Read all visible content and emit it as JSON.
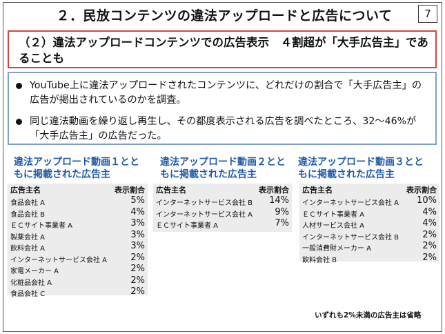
{
  "header": {
    "title": "２．民放コンテンツの違法アップロードと広告について",
    "page_number": "7"
  },
  "subtitle": "（２）違法アップロードコンテンツでの広告表示　４割超が「大手広告主」であることも",
  "bullets": [
    "YouTube上に違法アップロードされたコンテンツに、どれだけの割合で「大手広告主」の広告が掲出されているのかを調査。",
    "同じ違法動画を繰り返し再生し、その都度表示される広告を調べたところ、32～46%が「大手広告主」の広告だった。"
  ],
  "tables": [
    {
      "heading": "違法アップロード動画１とともに掲載された広告主",
      "col_name": "広告主名",
      "col_value": "表示割合",
      "rows": [
        {
          "name": "食品会社 A",
          "pct": "5%"
        },
        {
          "name": "食品会社 B",
          "pct": "4%"
        },
        {
          "name": "ＥＣサイト事業者 A",
          "pct": "3%"
        },
        {
          "name": "製薬会社 A",
          "pct": "3%"
        },
        {
          "name": "飲料会社 A",
          "pct": "3%"
        },
        {
          "name": "インターネットサービス会社 A",
          "pct": "2%"
        },
        {
          "name": "家電メーカー A",
          "pct": "2%"
        },
        {
          "name": "化粧品会社 A",
          "pct": "2%"
        },
        {
          "name": "食品会社 C",
          "pct": "2%"
        }
      ]
    },
    {
      "heading": "違法アップロード動画２とともに掲載された広告主",
      "col_name": "広告主名",
      "col_value": "表示割合",
      "rows": [
        {
          "name": "インターネットサービス会社 B",
          "pct": "14%"
        },
        {
          "name": "インターネットサービス会社 A",
          "pct": "9%"
        },
        {
          "name": "ＥＣサイト事業者 A",
          "pct": "7%"
        }
      ]
    },
    {
      "heading": "違法アップロード動画３とともに掲載された広告主",
      "col_name": "広告主名",
      "col_value": "表示割合",
      "rows": [
        {
          "name": "インターネットサービス会社 A",
          "pct": "10%"
        },
        {
          "name": "ＥＣサイト事業者 A",
          "pct": "4%"
        },
        {
          "name": "人材サービス会社 A",
          "pct": "4%"
        },
        {
          "name": "インターネットサービス会社 B",
          "pct": "2%"
        },
        {
          "name": "一般消費財メーカー A",
          "pct": "2%"
        },
        {
          "name": "飲料会社 B",
          "pct": "2%"
        }
      ]
    }
  ],
  "footnote": "いずれも2%未満の広告主は省略",
  "colors": {
    "accent_red": "#d94040",
    "accent_blue": "#1f5aa8",
    "bullet_border": "#7fa0c8",
    "table_bg": "#ececec"
  }
}
